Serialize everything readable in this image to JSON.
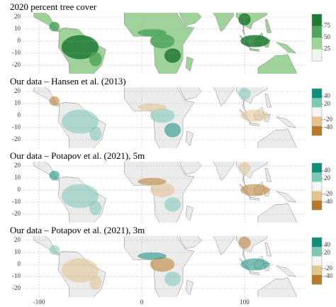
{
  "panels": [
    {
      "title": "2020 percent tree cover",
      "yticks": [
        20,
        10,
        0,
        -10,
        -20
      ],
      "colorbar": {
        "colors": [
          "#1e7a34",
          "#4fa55a",
          "#9fd39a",
          "#eef7ec"
        ],
        "clim": [
          0,
          100
        ],
        "ticks": [
          75,
          50,
          25
        ]
      }
    },
    {
      "title": "Our data – Hansen et al. (2013)",
      "yticks": [
        20,
        10,
        0,
        -10,
        -20
      ],
      "colorbar": {
        "colors": [
          "#0f8c7a",
          "#7cc9b8",
          "#f5f5f5",
          "#e2c58f",
          "#b87a2a"
        ],
        "clim": [
          -60,
          60
        ],
        "ticks": [
          40,
          20,
          -20,
          -40
        ]
      }
    },
    {
      "title": "Our data – Potapov et al. (2021), 5m",
      "yticks": [
        20,
        10,
        0,
        -10,
        -20
      ],
      "colorbar": {
        "colors": [
          "#0f8c7a",
          "#7cc9b8",
          "#f5f5f5",
          "#e2c58f",
          "#b87a2a"
        ],
        "clim": [
          -60,
          60
        ],
        "ticks": [
          40,
          20,
          -20,
          -40
        ]
      }
    },
    {
      "title": "Our data – Potapov et al. (2021), 3m",
      "yticks": [
        20,
        10,
        0,
        -10,
        -20
      ],
      "colorbar": {
        "colors": [
          "#0f8c7a",
          "#7cc9b8",
          "#f5f5f5",
          "#e2c58f",
          "#b87a2a"
        ],
        "clim": [
          -60,
          60
        ],
        "ticks": [
          40,
          20,
          -20,
          -40
        ]
      }
    }
  ],
  "xticks": [
    -100,
    0,
    100
  ]
}
